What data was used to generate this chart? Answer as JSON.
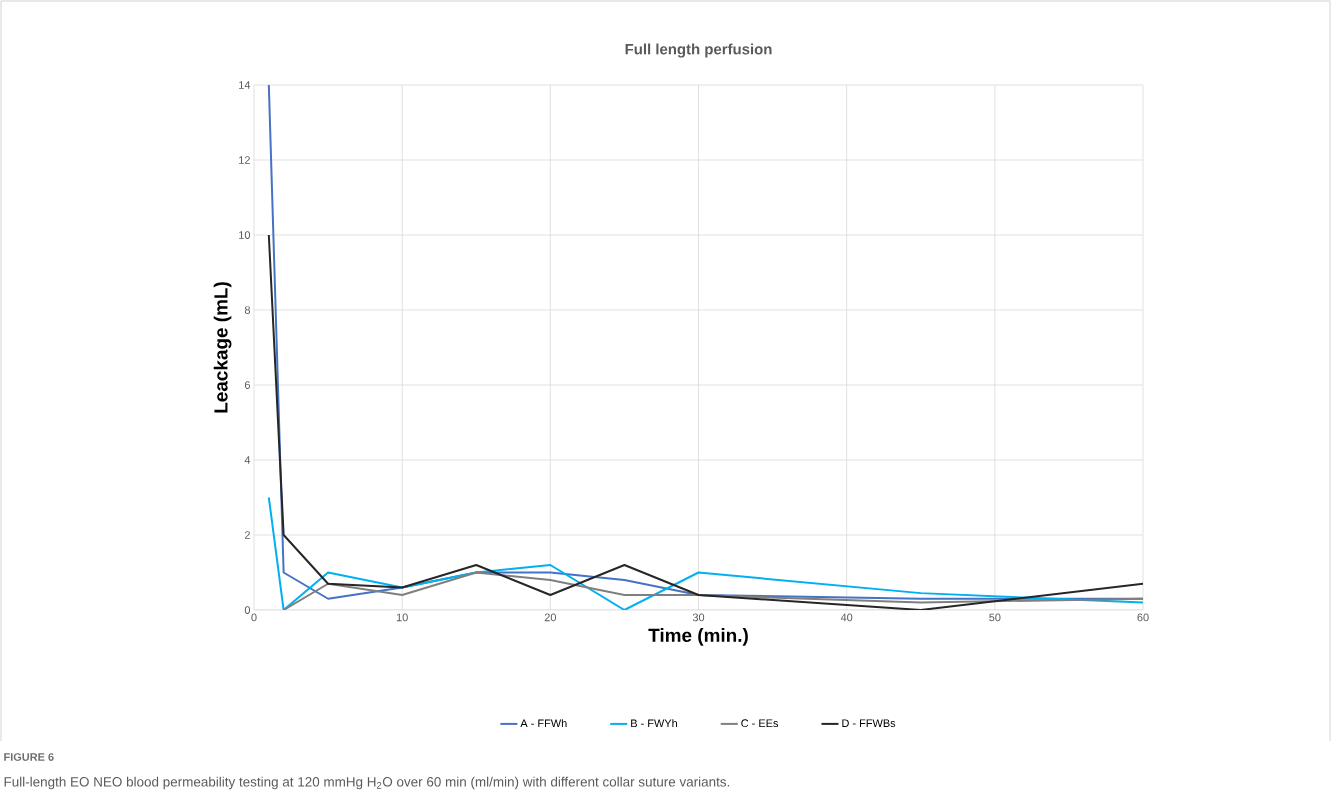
{
  "chart_data": {
    "type": "line",
    "title": "Full length perfusion",
    "xlabel": "Time (min.)",
    "ylabel": "Leackage (mL)",
    "x": [
      1,
      2,
      5,
      10,
      15,
      20,
      25,
      30,
      45,
      60
    ],
    "series": [
      {
        "name": "A - FFWh",
        "color": "#4472c4",
        "values": [
          14,
          1,
          0.3,
          0.6,
          1.0,
          1.0,
          0.8,
          0.4,
          0.3,
          0.3
        ]
      },
      {
        "name": "B - FWYh",
        "color": "#00b0f0",
        "values": [
          3,
          0,
          1.0,
          0.6,
          1.0,
          1.2,
          0,
          1.0,
          0.45,
          0.2
        ]
      },
      {
        "name": "C - EEs",
        "color": "#7f7f7f",
        "values": [
          null,
          0,
          0.7,
          0.4,
          1.0,
          0.8,
          0.4,
          0.4,
          0.2,
          0.3
        ]
      },
      {
        "name": "D - FFWBs",
        "color": "#262626",
        "values": [
          10,
          2,
          0.7,
          0.6,
          1.2,
          0.4,
          1.2,
          0.4,
          0,
          0.7
        ]
      }
    ],
    "xlim": [
      0,
      60
    ],
    "xticks": [
      0,
      10,
      20,
      30,
      40,
      50,
      60
    ],
    "ylim": [
      0,
      14
    ],
    "yticks": [
      0,
      2,
      4,
      6,
      8,
      10,
      12,
      14
    ],
    "grid": true,
    "legend": "bottom",
    "marker": "none",
    "line_style": "solid",
    "annotations": [
      "FIGURE 6",
      "Full-length EO NEO blood permeability testing at 120 mmHg H$_{2}$O over 60 min (ml/min) with different collar suture variants."
    ]
  }
}
